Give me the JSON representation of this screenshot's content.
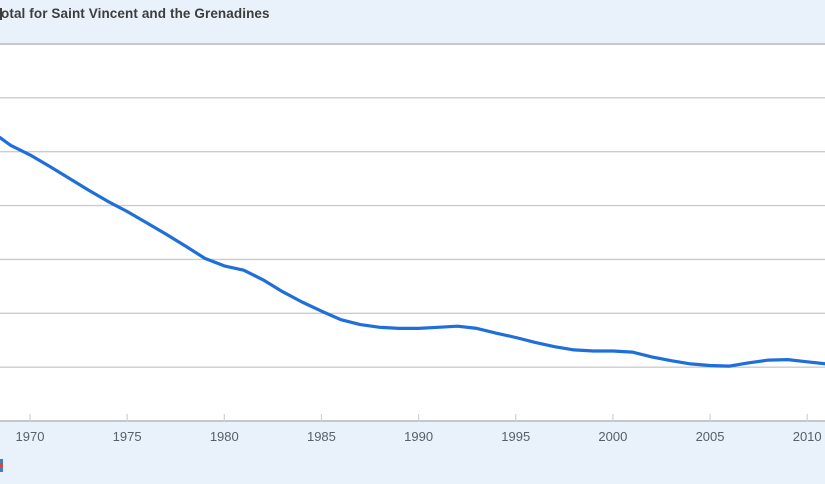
{
  "header": {
    "title_visible": "otal for Saint Vincent and the Grenadines"
  },
  "x_axis": {
    "tick_labels": [
      "1970",
      "1975",
      "1980",
      "1985",
      "1990",
      "1995",
      "2000",
      "2005",
      "2010"
    ]
  },
  "colors": {
    "band_bg": "#e9f1fa",
    "plot_bg": "#ffffff",
    "line": "#1e6fd9",
    "gridline": "#cccccc",
    "plot_border": "#c5c8ca",
    "tick": "#c9d3dd",
    "tick_label": "#57606a",
    "title_text": "#3d3d3d",
    "logo_blue": "#4b7bbd",
    "logo_red": "#cf4a3c"
  },
  "chart_data": {
    "type": "line",
    "title": "otal for Saint Vincent and the Grenadines",
    "xlabel": "",
    "ylabel": "",
    "grid": true,
    "legend": false,
    "ylim": [
      1,
      8
    ],
    "y_gridline_interval": 1,
    "x_visible_range": [
      1968.5,
      2010.9
    ],
    "x": [
      1968,
      1969,
      1970,
      1971,
      1972,
      1973,
      1974,
      1975,
      1976,
      1977,
      1978,
      1979,
      1980,
      1981,
      1982,
      1983,
      1984,
      1985,
      1986,
      1987,
      1988,
      1989,
      1990,
      1991,
      1992,
      1993,
      1994,
      1995,
      1996,
      1997,
      1998,
      1999,
      2000,
      2001,
      2002,
      2003,
      2004,
      2005,
      2006,
      2007,
      2008,
      2009,
      2010,
      2011
    ],
    "values": [
      6.38,
      6.12,
      5.94,
      5.73,
      5.51,
      5.29,
      5.08,
      4.89,
      4.68,
      4.47,
      4.25,
      4.02,
      3.88,
      3.8,
      3.62,
      3.4,
      3.21,
      3.04,
      2.88,
      2.79,
      2.74,
      2.72,
      2.72,
      2.74,
      2.76,
      2.72,
      2.63,
      2.55,
      2.46,
      2.38,
      2.32,
      2.3,
      2.3,
      2.28,
      2.19,
      2.12,
      2.06,
      2.03,
      2.02,
      2.08,
      2.13,
      2.14,
      2.1,
      2.06
    ]
  }
}
